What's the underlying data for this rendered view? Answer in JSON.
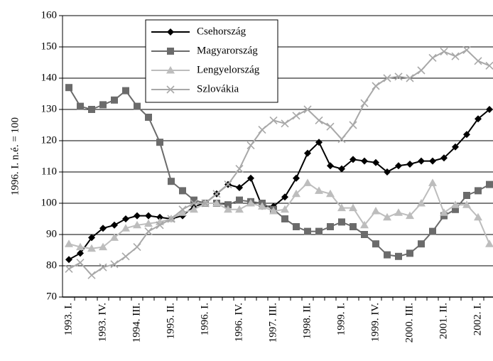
{
  "chart_data": {
    "type": "line",
    "ylabel": "1996. I. n.é. = 100",
    "categories": [
      "1993. I.",
      null,
      null,
      "1993. IV.",
      null,
      null,
      "1994. III.",
      null,
      null,
      "1995. II.",
      null,
      null,
      "1996. I.",
      null,
      null,
      "1996. IV.",
      null,
      null,
      "1997. III.",
      null,
      null,
      "1998. II.",
      null,
      null,
      "1999. I.",
      null,
      null,
      "1999. IV.",
      null,
      null,
      "2000. III.",
      null,
      null,
      "2001. II.",
      null,
      null,
      "2002. I.",
      null
    ],
    "series": [
      {
        "name": "Csehország",
        "color": "#000000",
        "marker": "diamond",
        "values": [
          82,
          84,
          89,
          92,
          93,
          95,
          96,
          96,
          95.5,
          95,
          96,
          99,
          100,
          103,
          106,
          105,
          108,
          99,
          99,
          102,
          108,
          116,
          119.5,
          112,
          111,
          114,
          113.5,
          113,
          110,
          112,
          112.5,
          113.5,
          113.5,
          114.5,
          118,
          122,
          127,
          130
        ]
      },
      {
        "name": "Magyarország",
        "color": "#6b6b6b",
        "marker": "square",
        "values": [
          137,
          131,
          130,
          131.5,
          133,
          136,
          131,
          127.5,
          119.5,
          107,
          104,
          101,
          100,
          100,
          99.5,
          101,
          100.5,
          100,
          98,
          95,
          92.5,
          91,
          91,
          92.5,
          94,
          92.5,
          90,
          87,
          83.5,
          83,
          84,
          87,
          91,
          96,
          98,
          102.5,
          104,
          106
        ]
      },
      {
        "name": "Lengyelország",
        "color": "#bdbdbd",
        "marker": "triangle",
        "values": [
          87,
          86,
          85.5,
          86,
          89,
          92,
          93,
          93.5,
          94,
          95,
          97,
          98,
          100,
          100,
          98,
          98,
          100,
          99,
          97.5,
          98,
          103,
          106.5,
          104,
          103,
          98.5,
          98.5,
          93,
          97.5,
          95.5,
          97,
          96,
          100,
          106.5,
          97,
          99.5,
          99.5,
          95.5,
          87
        ]
      },
      {
        "name": "Szlovákia",
        "color": "#a8a8a8",
        "marker": "cross",
        "values": [
          79,
          81,
          77,
          79.5,
          80.5,
          83,
          86,
          91,
          93,
          95,
          98,
          100,
          100,
          103,
          106,
          111,
          118.5,
          123.5,
          126.5,
          125.5,
          128,
          130,
          126.5,
          124.5,
          120.5,
          125,
          132,
          137.5,
          140,
          140.5,
          140,
          142.5,
          146.5,
          148.5,
          147,
          149,
          145.5,
          144
        ]
      }
    ],
    "ylim": [
      70,
      160
    ],
    "yticks": [
      70,
      80,
      90,
      100,
      110,
      120,
      130,
      140,
      150,
      160
    ],
    "grid": true
  }
}
